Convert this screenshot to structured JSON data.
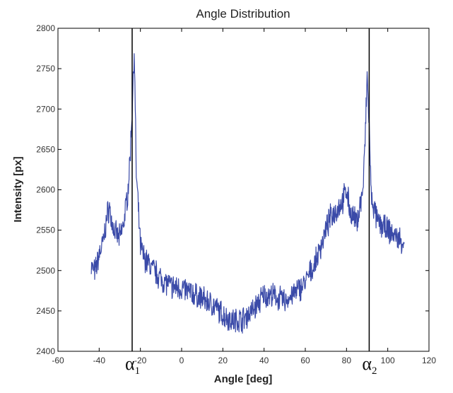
{
  "chart_data": {
    "type": "line",
    "title": "Angle Distribution",
    "xlabel": "Angle [deg]",
    "ylabel": "Intensity [px]",
    "xlim": [
      -60,
      120
    ],
    "ylim": [
      2400,
      2800
    ],
    "xticks": [
      -60,
      -40,
      -20,
      0,
      20,
      40,
      60,
      80,
      100,
      120
    ],
    "yticks": [
      2400,
      2450,
      2500,
      2550,
      2600,
      2650,
      2700,
      2750,
      2800
    ],
    "grid": false,
    "legend": "none",
    "series": [
      {
        "color": "#3a4aa8",
        "x": [
          -44,
          -42,
          -40,
          -38,
          -36,
          -35,
          -34,
          -32,
          -30,
          -28,
          -26,
          -25,
          -24,
          -23,
          -22,
          -20,
          -18,
          -15,
          -10,
          -5,
          0,
          5,
          10,
          15,
          20,
          25,
          30,
          35,
          40,
          45,
          50,
          55,
          60,
          65,
          70,
          72,
          75,
          78,
          80,
          82,
          85,
          88,
          89,
          90,
          91,
          92,
          95,
          100,
          105,
          108
        ],
        "values": [
          2505,
          2498,
          2520,
          2535,
          2570,
          2578,
          2560,
          2545,
          2540,
          2560,
          2600,
          2640,
          2700,
          2775,
          2620,
          2530,
          2515,
          2505,
          2490,
          2480,
          2478,
          2472,
          2465,
          2458,
          2445,
          2438,
          2440,
          2452,
          2470,
          2468,
          2462,
          2472,
          2485,
          2510,
          2550,
          2565,
          2575,
          2585,
          2600,
          2570,
          2560,
          2600,
          2660,
          2740,
          2680,
          2590,
          2560,
          2550,
          2540,
          2535
        ]
      }
    ],
    "vlines": [
      {
        "x": -24,
        "label": "α",
        "sub": "1"
      },
      {
        "x": 91,
        "label": "α",
        "sub": "2"
      }
    ]
  }
}
